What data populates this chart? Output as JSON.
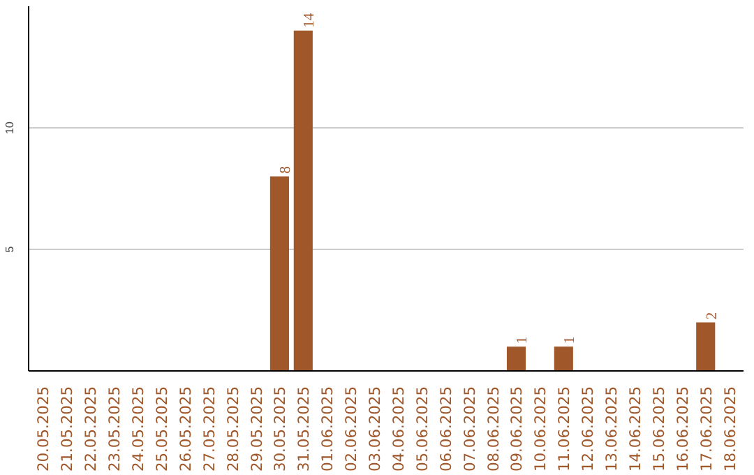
{
  "chart_data": {
    "type": "bar",
    "categories": [
      "20.05.2025",
      "21.05.2025",
      "22.05.2025",
      "23.05.2025",
      "24.05.2025",
      "25.05.2025",
      "26.05.2025",
      "27.05.2025",
      "28.05.2025",
      "29.05.2025",
      "30.05.2025",
      "31.05.2025",
      "01.06.2025",
      "02.06.2025",
      "03.06.2025",
      "04.06.2025",
      "05.06.2025",
      "06.06.2025",
      "07.06.2025",
      "08.06.2025",
      "09.06.2025",
      "10.06.2025",
      "11.06.2025",
      "12.06.2025",
      "13.06.2025",
      "14.06.2025",
      "15.06.2025",
      "16.06.2025",
      "17.06.2025",
      "18.06.2025"
    ],
    "values": [
      0,
      0,
      0,
      0,
      0,
      0,
      0,
      0,
      0,
      0,
      8,
      14,
      0,
      0,
      0,
      0,
      0,
      0,
      0,
      0,
      1,
      0,
      1,
      0,
      0,
      0,
      0,
      0,
      2,
      0
    ],
    "value_labels": [
      null,
      null,
      null,
      null,
      null,
      null,
      null,
      null,
      null,
      null,
      "8",
      "14",
      null,
      null,
      null,
      null,
      null,
      null,
      null,
      null,
      "1",
      null,
      "1",
      null,
      null,
      null,
      null,
      null,
      "2",
      null
    ],
    "color": "#a0572a",
    "ylim": [
      0,
      15
    ],
    "yticks": [
      5,
      10
    ],
    "grid": "y"
  }
}
